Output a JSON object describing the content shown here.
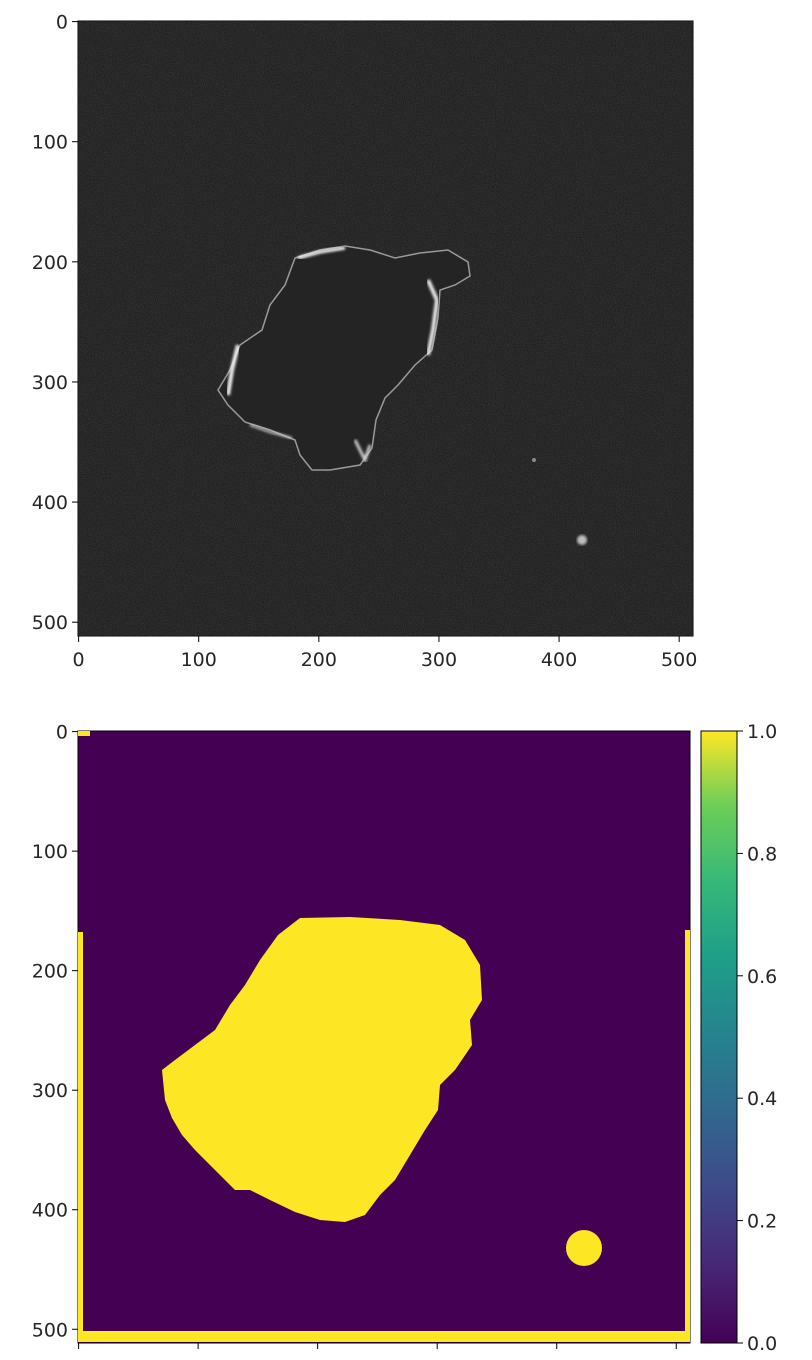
{
  "chart_data": [
    {
      "type": "image",
      "colormap": "gray",
      "xlim": [
        0,
        511
      ],
      "ylim": [
        511,
        0
      ],
      "x_ticks": [
        "0",
        "100",
        "200",
        "300",
        "400",
        "500"
      ],
      "y_ticks": [
        "0",
        "100",
        "200",
        "300",
        "400",
        "500"
      ]
    },
    {
      "type": "heatmap",
      "colormap": "viridis",
      "values_range": [
        0.0,
        1.0
      ],
      "x_ticks": [
        "",
        "",
        "",
        "",
        "",
        ""
      ],
      "y_ticks": [
        "0",
        "100",
        "200",
        "300",
        "400",
        "500"
      ],
      "colorbar": {
        "ticks": [
          "0.0",
          "0.2",
          "0.4",
          "0.6",
          "0.8",
          "1.0"
        ],
        "range": [
          0.0,
          1.0
        ]
      }
    }
  ],
  "colors": {
    "background_dark": "#161616",
    "mask_low": "#440154",
    "mask_high": "#fde725"
  }
}
